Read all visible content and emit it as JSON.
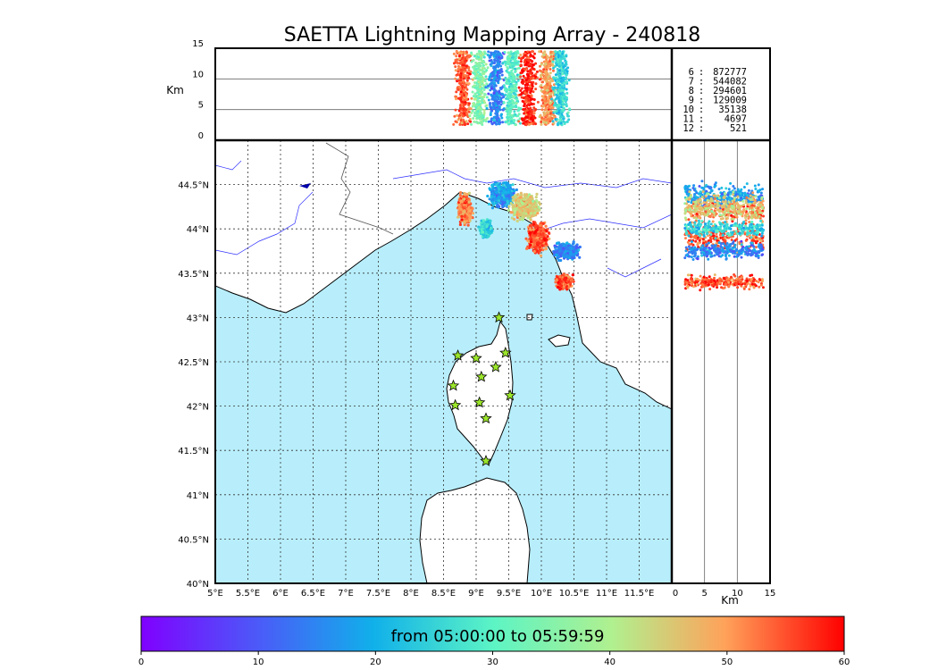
{
  "chart_data": {
    "type": "scatter",
    "title": "SAETTA Lightning Mapping Array - 240818",
    "colorbar": {
      "label": "from 05:00:00 to 05:59:59",
      "ticks": [
        "0",
        "10",
        "20",
        "30",
        "40",
        "50",
        "60"
      ],
      "range": [
        0,
        60
      ],
      "colormap": "rainbow"
    },
    "map": {
      "lon_range": [
        5.0,
        12.0
      ],
      "lat_range": [
        40.0,
        45.0
      ],
      "lon_ticks": [
        "5°E",
        "5.5°E",
        "6°E",
        "6.5°E",
        "7°E",
        "7.5°E",
        "8°E",
        "8.5°E",
        "9°E",
        "9.5°E",
        "10°E",
        "10.5°E",
        "11°E",
        "11.5°E"
      ],
      "lat_ticks": [
        "40°N",
        "40.5°N",
        "41°N",
        "41.5°N",
        "42°N",
        "42.5°N",
        "43°N",
        "43.5°N",
        "44°N",
        "44.5°N"
      ],
      "land_color": "#ffffff",
      "sea_color": "#b8eefb",
      "stations": [
        {
          "lon": 9.35,
          "lat": 43.0
        },
        {
          "lon": 8.72,
          "lat": 42.57
        },
        {
          "lon": 9.0,
          "lat": 42.54
        },
        {
          "lon": 9.45,
          "lat": 42.6
        },
        {
          "lon": 9.3,
          "lat": 42.44
        },
        {
          "lon": 9.08,
          "lat": 42.33
        },
        {
          "lon": 8.65,
          "lat": 42.23
        },
        {
          "lon": 9.52,
          "lat": 42.12
        },
        {
          "lon": 8.68,
          "lat": 42.01
        },
        {
          "lon": 9.05,
          "lat": 42.04
        },
        {
          "lon": 9.15,
          "lat": 41.86
        },
        {
          "lon": 9.15,
          "lat": 41.38
        }
      ],
      "clusters": [
        {
          "lon": 8.83,
          "lat": 44.22,
          "dlon": 0.14,
          "dlat": 0.22,
          "t": 52
        },
        {
          "lon": 9.4,
          "lat": 44.38,
          "dlon": 0.25,
          "dlat": 0.18,
          "t": 18
        },
        {
          "lon": 9.75,
          "lat": 44.25,
          "dlon": 0.28,
          "dlat": 0.2,
          "t": 45
        },
        {
          "lon": 9.95,
          "lat": 43.9,
          "dlon": 0.2,
          "dlat": 0.22,
          "t": 55
        },
        {
          "lon": 10.4,
          "lat": 43.75,
          "dlon": 0.25,
          "dlat": 0.12,
          "t": 15
        },
        {
          "lon": 10.35,
          "lat": 43.4,
          "dlon": 0.15,
          "dlat": 0.1,
          "t": 55
        },
        {
          "lon": 9.15,
          "lat": 44.0,
          "dlon": 0.12,
          "dlat": 0.12,
          "t": 25
        }
      ]
    },
    "top_panel": {
      "ylabel": "Km",
      "yticks": [
        "0",
        "5",
        "10",
        "15"
      ],
      "y_range": [
        0,
        15
      ],
      "columns": [
        {
          "lon": 8.8,
          "t": 55
        },
        {
          "lon": 9.05,
          "t": 35
        },
        {
          "lon": 9.3,
          "t": 15
        },
        {
          "lon": 9.55,
          "t": 30
        },
        {
          "lon": 9.8,
          "t": 58
        },
        {
          "lon": 10.1,
          "t": 50
        },
        {
          "lon": 10.3,
          "t": 25
        }
      ]
    },
    "right_panel": {
      "xlabel": "Km",
      "xticks": [
        "0",
        "5",
        "10",
        "15"
      ],
      "x_range": [
        0,
        15
      ]
    },
    "legend": [
      {
        "n": "6",
        "count": "872777",
        "color": "#000000"
      },
      {
        "n": "7",
        "count": "544082",
        "color": "#ff0000"
      },
      {
        "n": "8",
        "count": "294601",
        "color": "#000000"
      },
      {
        "n": "9",
        "count": "129009",
        "color": "#000000"
      },
      {
        "n": "10",
        "count": "35138",
        "color": "#000000"
      },
      {
        "n": "11",
        "count": "4697",
        "color": "#000000"
      },
      {
        "n": "12",
        "count": "521",
        "color": "#000000"
      }
    ]
  }
}
